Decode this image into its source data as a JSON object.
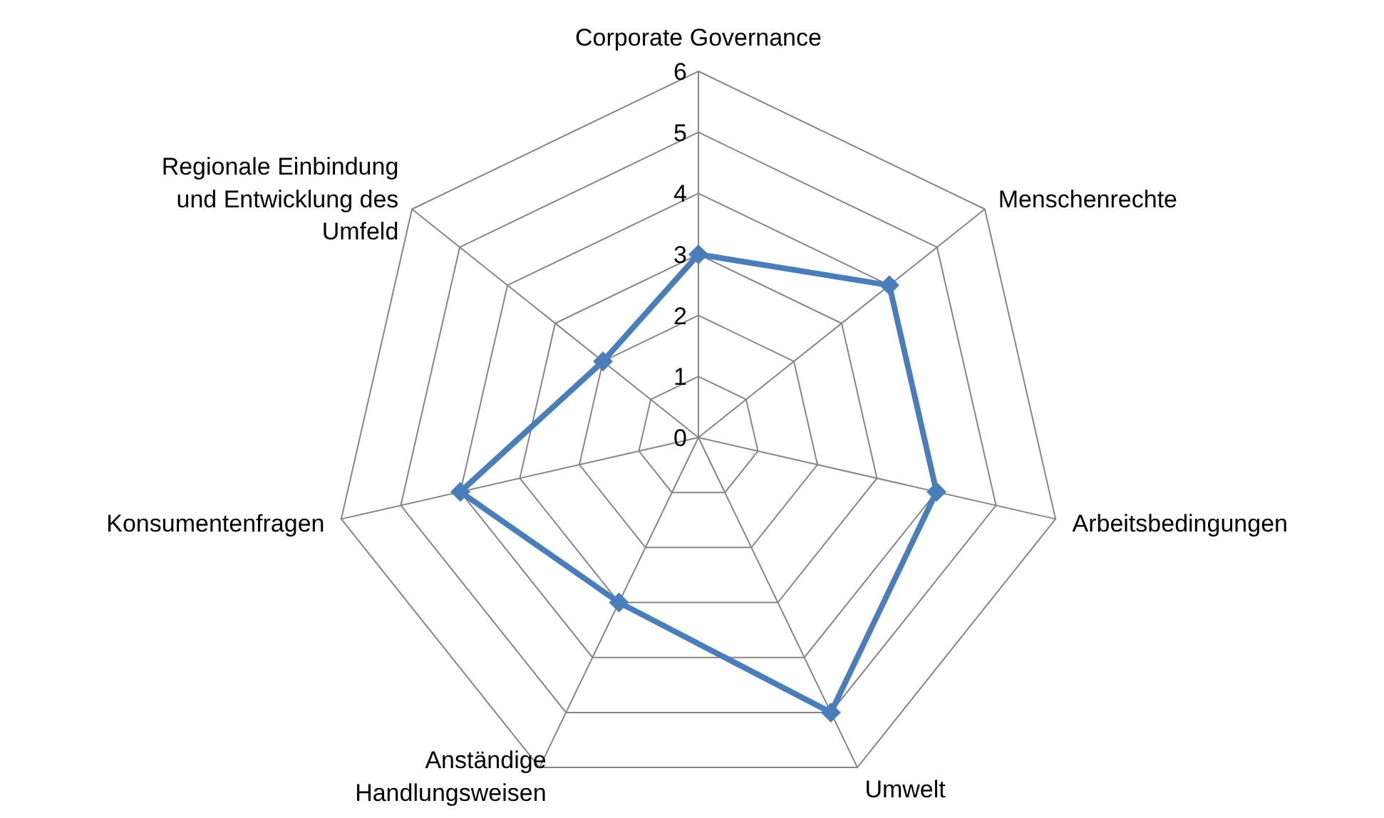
{
  "chart_data": {
    "type": "radar",
    "categories": [
      "Corporate Governance",
      "Menschenrechte",
      "Arbeitsbedingungen",
      "Umwelt",
      "Anständige Handlungsweisen",
      "Konsumentenfragen",
      "Regionale Einbindung und Entwicklung des Umfeld"
    ],
    "series": [
      {
        "color": "#4a7ebb",
        "values": [
          3,
          4,
          4,
          5,
          3,
          4,
          2
        ]
      }
    ],
    "ylim": [
      0,
      6
    ],
    "yticks": [
      0,
      1,
      2,
      3,
      4,
      5,
      6
    ],
    "grid": true,
    "marker": "diamond"
  }
}
